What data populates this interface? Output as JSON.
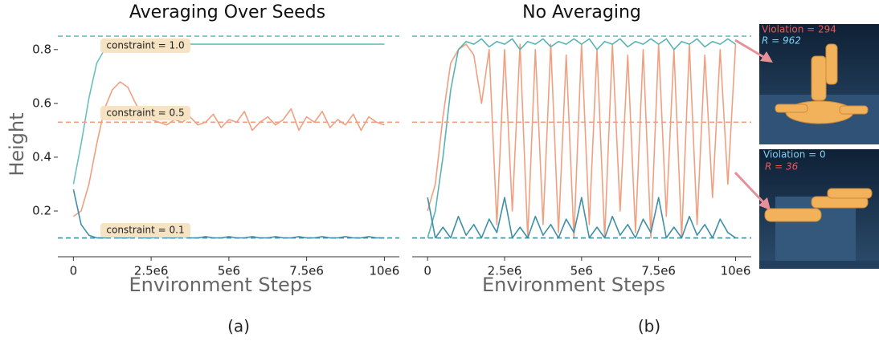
{
  "chart_data": [
    {
      "type": "line",
      "title": "Averaging Over Seeds",
      "xlabel": "Environment Steps",
      "ylabel": "Height",
      "x": [
        0,
        250000,
        500000,
        750000,
        1000000,
        1250000,
        1500000,
        1750000,
        2000000,
        2250000,
        2500000,
        2750000,
        3000000,
        3250000,
        3500000,
        3750000,
        4000000,
        4250000,
        4500000,
        4750000,
        5000000,
        5250000,
        5500000,
        5750000,
        6000000,
        6250000,
        6500000,
        6750000,
        7000000,
        7250000,
        7500000,
        7750000,
        8000000,
        8250000,
        8500000,
        8750000,
        9000000,
        9250000,
        9500000,
        9750000,
        10000000
      ],
      "series": [
        {
          "name": "constraint = 1.0",
          "color": "#6cbfbf",
          "values": [
            0.3,
            0.45,
            0.62,
            0.75,
            0.8,
            0.81,
            0.82,
            0.82,
            0.82,
            0.82,
            0.82,
            0.82,
            0.82,
            0.82,
            0.82,
            0.82,
            0.82,
            0.82,
            0.82,
            0.82,
            0.82,
            0.82,
            0.82,
            0.82,
            0.82,
            0.82,
            0.82,
            0.82,
            0.82,
            0.82,
            0.82,
            0.82,
            0.82,
            0.82,
            0.82,
            0.82,
            0.82,
            0.82,
            0.82,
            0.82,
            0.82
          ]
        },
        {
          "name": "constraint = 0.5",
          "color": "#f0a080",
          "values": [
            0.18,
            0.2,
            0.3,
            0.45,
            0.58,
            0.65,
            0.68,
            0.66,
            0.6,
            0.55,
            0.54,
            0.53,
            0.52,
            0.54,
            0.53,
            0.55,
            0.52,
            0.53,
            0.56,
            0.51,
            0.54,
            0.53,
            0.57,
            0.5,
            0.53,
            0.55,
            0.52,
            0.54,
            0.58,
            0.5,
            0.55,
            0.53,
            0.57,
            0.51,
            0.54,
            0.52,
            0.56,
            0.5,
            0.55,
            0.53,
            0.52
          ]
        },
        {
          "name": "constraint = 0.1",
          "color": "#3f8fa8",
          "values": [
            0.28,
            0.15,
            0.11,
            0.1,
            0.1,
            0.105,
            0.1,
            0.1,
            0.105,
            0.1,
            0.1,
            0.105,
            0.1,
            0.1,
            0.105,
            0.1,
            0.1,
            0.105,
            0.1,
            0.1,
            0.105,
            0.1,
            0.1,
            0.105,
            0.1,
            0.1,
            0.105,
            0.1,
            0.1,
            0.105,
            0.1,
            0.1,
            0.105,
            0.1,
            0.1,
            0.105,
            0.1,
            0.1,
            0.105,
            0.1,
            0.1
          ]
        }
      ],
      "hlines": [
        0.85,
        0.53,
        0.1
      ],
      "hline_colors": [
        "#6cbfbf",
        "#f0a080",
        "#3f8fa8"
      ],
      "xlim": [
        -500000,
        10300000
      ],
      "ylim": [
        0.03,
        0.865
      ],
      "xticks": [
        0,
        {
          "value": 2500000,
          "label": "2.5e6"
        },
        {
          "value": 5000000,
          "label": "5e6"
        },
        {
          "value": 7500000,
          "label": "7.5e6"
        },
        {
          "value": 10000000,
          "label": "10e6"
        }
      ],
      "yticks": [
        0.2,
        0.4,
        0.6,
        0.8
      ]
    },
    {
      "type": "line",
      "title": "No Averaging",
      "xlabel": "Environment Steps",
      "x": [
        0,
        250000,
        500000,
        750000,
        1000000,
        1250000,
        1500000,
        1750000,
        2000000,
        2250000,
        2500000,
        2750000,
        3000000,
        3250000,
        3500000,
        3750000,
        4000000,
        4250000,
        4500000,
        4750000,
        5000000,
        5250000,
        5500000,
        5750000,
        6000000,
        6250000,
        6500000,
        6750000,
        7000000,
        7250000,
        7500000,
        7750000,
        8000000,
        8250000,
        8500000,
        8750000,
        9000000,
        9250000,
        9500000,
        9750000,
        10000000
      ],
      "series": [
        {
          "color": "#f0a080",
          "values": [
            0.2,
            0.3,
            0.55,
            0.75,
            0.8,
            0.82,
            0.78,
            0.6,
            0.8,
            0.15,
            0.8,
            0.2,
            0.82,
            0.1,
            0.8,
            0.15,
            0.82,
            0.12,
            0.78,
            0.1,
            0.82,
            0.15,
            0.8,
            0.1,
            0.82,
            0.2,
            0.78,
            0.12,
            0.8,
            0.1,
            0.82,
            0.18,
            0.8,
            0.1,
            0.82,
            0.15,
            0.78,
            0.25,
            0.8,
            0.3,
            0.82
          ]
        },
        {
          "color": "#5ab3b3",
          "values": [
            0.1,
            0.2,
            0.4,
            0.65,
            0.8,
            0.83,
            0.82,
            0.84,
            0.81,
            0.83,
            0.82,
            0.84,
            0.8,
            0.83,
            0.82,
            0.84,
            0.81,
            0.83,
            0.82,
            0.84,
            0.82,
            0.84,
            0.8,
            0.83,
            0.82,
            0.84,
            0.81,
            0.83,
            0.82,
            0.84,
            0.82,
            0.84,
            0.8,
            0.83,
            0.82,
            0.84,
            0.81,
            0.83,
            0.82,
            0.84,
            0.82
          ]
        },
        {
          "color": "#3f8fa8",
          "values": [
            0.25,
            0.1,
            0.14,
            0.1,
            0.18,
            0.11,
            0.15,
            0.1,
            0.17,
            0.12,
            0.25,
            0.1,
            0.14,
            0.1,
            0.18,
            0.11,
            0.15,
            0.1,
            0.17,
            0.12,
            0.25,
            0.1,
            0.14,
            0.1,
            0.18,
            0.11,
            0.15,
            0.1,
            0.17,
            0.12,
            0.25,
            0.1,
            0.14,
            0.1,
            0.18,
            0.11,
            0.15,
            0.1,
            0.17,
            0.12,
            0.1
          ]
        }
      ],
      "hlines": [
        0.85,
        0.53,
        0.1
      ],
      "hline_colors": [
        "#6cbfbf",
        "#f0a080",
        "#3f8fa8"
      ],
      "xlim": [
        -500000,
        10300000
      ],
      "ylim": [
        0.03,
        0.865
      ],
      "xticks": [
        0,
        {
          "value": 2500000,
          "label": "2.5e6"
        },
        {
          "value": 5000000,
          "label": "5e6"
        },
        {
          "value": 7500000,
          "label": "7.5e6"
        },
        {
          "value": 10000000,
          "label": "10e6"
        }
      ]
    }
  ],
  "figure": {
    "captions": [
      "(a)",
      "(b)"
    ],
    "insets": [
      {
        "violation": "Violation = 294",
        "reward": "R = 962"
      },
      {
        "violation": "Violation = 0",
        "reward": "R = 36"
      }
    ]
  }
}
